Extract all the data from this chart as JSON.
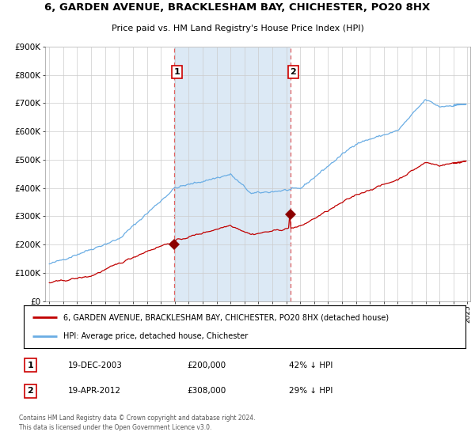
{
  "title": "6, GARDEN AVENUE, BRACKLESHAM BAY, CHICHESTER, PO20 8HX",
  "subtitle": "Price paid vs. HM Land Registry's House Price Index (HPI)",
  "legend_line1": "6, GARDEN AVENUE, BRACKLESHAM BAY, CHICHESTER, PO20 8HX (detached house)",
  "legend_line2": "HPI: Average price, detached house, Chichester",
  "annotation1_label": "1",
  "annotation1_date": "19-DEC-2003",
  "annotation1_price": "£200,000",
  "annotation1_pct": "42% ↓ HPI",
  "annotation2_label": "2",
  "annotation2_date": "19-APR-2012",
  "annotation2_price": "£308,000",
  "annotation2_pct": "29% ↓ HPI",
  "footer": "Contains HM Land Registry data © Crown copyright and database right 2024.\nThis data is licensed under the Open Government Licence v3.0.",
  "hpi_color": "#6aade4",
  "price_color": "#c00000",
  "vline_color": "#e06060",
  "marker_color": "#8b0000",
  "background_color": "#dce9f5",
  "ylim": [
    0,
    900000
  ],
  "yticks": [
    0,
    100000,
    200000,
    300000,
    400000,
    500000,
    600000,
    700000,
    800000,
    900000
  ],
  "ytick_labels": [
    "£0",
    "£100K",
    "£200K",
    "£300K",
    "£400K",
    "£500K",
    "£600K",
    "£700K",
    "£800K",
    "£900K"
  ],
  "sale1_x": 2003.97,
  "sale1_y": 200000,
  "sale2_x": 2012.29,
  "sale2_y": 308000,
  "xmin": 1994.7,
  "xmax": 2025.2
}
